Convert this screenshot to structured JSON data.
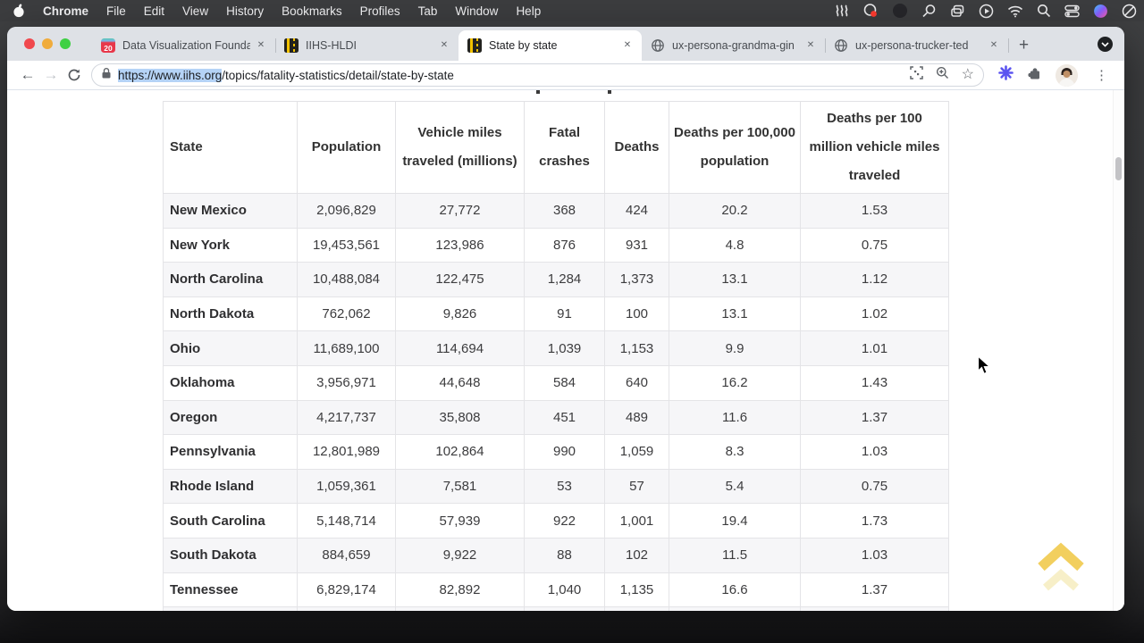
{
  "menu_bar": {
    "items": [
      "Chrome",
      "File",
      "Edit",
      "View",
      "History",
      "Bookmarks",
      "Profiles",
      "Tab",
      "Window",
      "Help"
    ]
  },
  "browser": {
    "tabs": [
      {
        "title": "Data Visualization Founda",
        "favicon": "calendar-20",
        "favicon_text": "20"
      },
      {
        "title": "IIHS-HLDI",
        "favicon": "road"
      },
      {
        "title": "State by state",
        "favicon": "road",
        "active": true
      },
      {
        "title": "ux-persona-grandma-gin",
        "favicon": "globe"
      },
      {
        "title": "ux-persona-trucker-ted",
        "favicon": "globe"
      }
    ],
    "url": {
      "selected": "https://www.iihs.org",
      "rest": "/topics/fatality-statistics/detail/state-by-state"
    }
  },
  "icons": {
    "close": "✕",
    "new_tab": "+",
    "back": "←",
    "forward": "→",
    "star": "☆",
    "kebab": "⋮"
  },
  "page": {
    "table": {
      "headers": [
        "State",
        "Population",
        "Vehicle miles traveled (millions)",
        "Fatal crashes",
        "Deaths",
        "Deaths per 100,000 population",
        "Deaths per 100 million vehicle miles traveled"
      ],
      "rows": [
        [
          "New Mexico",
          "2,096,829",
          "27,772",
          "368",
          "424",
          "20.2",
          "1.53"
        ],
        [
          "New York",
          "19,453,561",
          "123,986",
          "876",
          "931",
          "4.8",
          "0.75"
        ],
        [
          "North Carolina",
          "10,488,084",
          "122,475",
          "1,284",
          "1,373",
          "13.1",
          "1.12"
        ],
        [
          "North Dakota",
          "762,062",
          "9,826",
          "91",
          "100",
          "13.1",
          "1.02"
        ],
        [
          "Ohio",
          "11,689,100",
          "114,694",
          "1,039",
          "1,153",
          "9.9",
          "1.01"
        ],
        [
          "Oklahoma",
          "3,956,971",
          "44,648",
          "584",
          "640",
          "16.2",
          "1.43"
        ],
        [
          "Oregon",
          "4,217,737",
          "35,808",
          "451",
          "489",
          "11.6",
          "1.37"
        ],
        [
          "Pennsylvania",
          "12,801,989",
          "102,864",
          "990",
          "1,059",
          "8.3",
          "1.03"
        ],
        [
          "Rhode Island",
          "1,059,361",
          "7,581",
          "53",
          "57",
          "5.4",
          "0.75"
        ],
        [
          "South Carolina",
          "5,148,714",
          "57,939",
          "922",
          "1,001",
          "19.4",
          "1.73"
        ],
        [
          "South Dakota",
          "884,659",
          "9,922",
          "88",
          "102",
          "11.5",
          "1.03"
        ],
        [
          "Tennessee",
          "6,829,174",
          "82,892",
          "1,040",
          "1,135",
          "16.6",
          "1.37"
        ]
      ]
    },
    "colors": {
      "accent_gold": "#f2cf5e",
      "row_stripe": "#f6f6f8",
      "url_selection": "#b5d3f6"
    }
  }
}
